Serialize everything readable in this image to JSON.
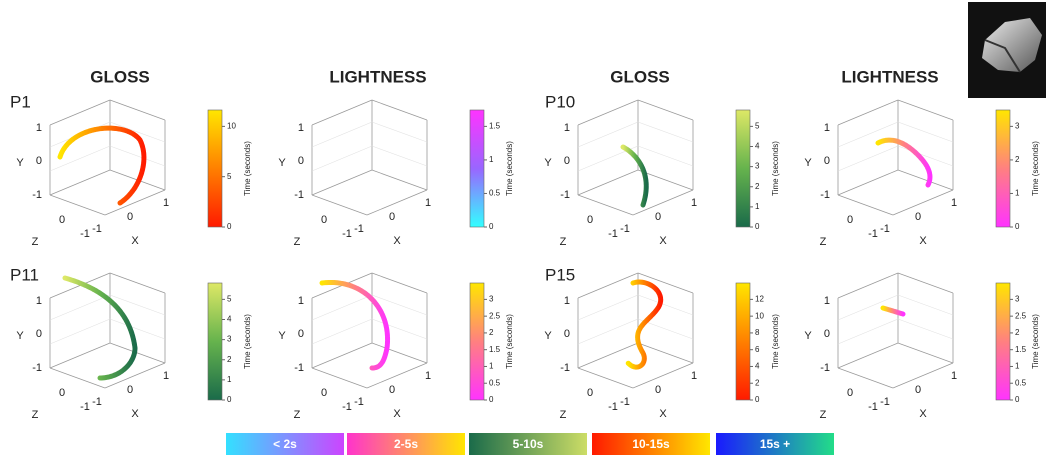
{
  "column_headers": [
    "GLOSS",
    "LIGHTNESS",
    "GLOSS",
    "LIGHTNESS"
  ],
  "participants": [
    "P1",
    "P10",
    "P11",
    "P15"
  ],
  "panels": [
    {
      "axis_labels": {
        "x": "X",
        "y": "Y",
        "z": "Z"
      },
      "x_ticks": [
        "-1",
        "0",
        "1"
      ],
      "y_ticks": [
        "1",
        "0",
        "-1"
      ],
      "z_ticks": [
        "0",
        "-1"
      ],
      "colorbar": {
        "label": "Time (seconds)",
        "ticks": [
          "0",
          "5",
          "10"
        ]
      }
    },
    {
      "axis_labels": {
        "x": "X",
        "y": "Y",
        "z": "Z"
      },
      "x_ticks": [
        "-1",
        "0",
        "1"
      ],
      "y_ticks": [
        "1",
        "0",
        "-1"
      ],
      "z_ticks": [
        "0",
        "-1"
      ],
      "colorbar": {
        "label": "Time (seconds)",
        "ticks": [
          "0",
          "0.5",
          "1",
          "1.5"
        ]
      }
    },
    {
      "axis_labels": {
        "x": "X",
        "y": "Y",
        "z": "Z"
      },
      "x_ticks": [
        "-1",
        "0",
        "1"
      ],
      "y_ticks": [
        "1",
        "0",
        "-1"
      ],
      "z_ticks": [
        "0",
        "-1"
      ],
      "colorbar": {
        "label": "Time (seconds)",
        "ticks": [
          "0",
          "1",
          "2",
          "3",
          "4",
          "5"
        ]
      }
    },
    {
      "axis_labels": {
        "x": "X",
        "y": "Y",
        "z": "Z"
      },
      "x_ticks": [
        "-1",
        "0",
        "1"
      ],
      "y_ticks": [
        "1",
        "0",
        "-1"
      ],
      "z_ticks": [
        "0",
        "-1"
      ],
      "colorbar": {
        "label": "Time (seconds)",
        "ticks": [
          "0",
          "1",
          "2",
          "3"
        ]
      }
    },
    {
      "axis_labels": {
        "x": "X",
        "y": "Y",
        "z": "Z"
      },
      "x_ticks": [
        "-1",
        "0",
        "1"
      ],
      "y_ticks": [
        "1",
        "0",
        "-1"
      ],
      "z_ticks": [
        "0",
        "-1"
      ],
      "colorbar": {
        "label": "Time (seconds)",
        "ticks": [
          "0",
          "1",
          "2",
          "3",
          "4",
          "5"
        ]
      }
    },
    {
      "axis_labels": {
        "x": "X",
        "y": "Y",
        "z": "Z"
      },
      "x_ticks": [
        "-1",
        "0",
        "1"
      ],
      "y_ticks": [
        "1",
        "0",
        "-1"
      ],
      "z_ticks": [
        "0",
        "-1"
      ],
      "colorbar": {
        "label": "Time (seconds)",
        "ticks": [
          "0",
          "0.5",
          "1",
          "1.5",
          "2",
          "2.5",
          "3"
        ]
      }
    },
    {
      "axis_labels": {
        "x": "X",
        "y": "Y",
        "z": "Z"
      },
      "x_ticks": [
        "-1",
        "0",
        "1"
      ],
      "y_ticks": [
        "1",
        "0",
        "-1"
      ],
      "z_ticks": [
        "0",
        "-1"
      ],
      "colorbar": {
        "label": "Time (seconds)",
        "ticks": [
          "0",
          "2",
          "4",
          "6",
          "8",
          "10",
          "12"
        ]
      }
    },
    {
      "axis_labels": {
        "x": "X",
        "y": "Y",
        "z": "Z"
      },
      "x_ticks": [
        "-1",
        "0",
        "1"
      ],
      "y_ticks": [
        "1",
        "0",
        "-1"
      ],
      "z_ticks": [
        "0",
        "-1"
      ],
      "colorbar": {
        "label": "Time (seconds)",
        "ticks": [
          "0",
          "0.5",
          "1",
          "1.5",
          "2",
          "2.5",
          "3"
        ]
      }
    }
  ],
  "legend": [
    "< 2s",
    "2-5s",
    "5-10s",
    "10-15s",
    "15s +"
  ]
}
